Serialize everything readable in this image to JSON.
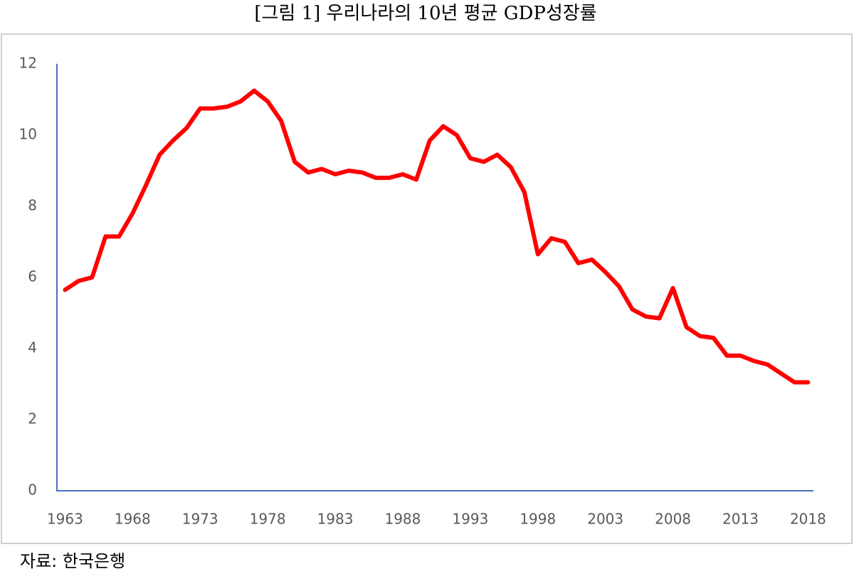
{
  "chart_data": {
    "type": "line",
    "title": "[그림 1] 우리나라의 10년 평균 GDP성장률",
    "source": "자료: 한국은행",
    "x": [
      1963,
      1964,
      1965,
      1966,
      1967,
      1968,
      1969,
      1970,
      1971,
      1972,
      1973,
      1974,
      1975,
      1976,
      1977,
      1978,
      1979,
      1980,
      1981,
      1982,
      1983,
      1984,
      1985,
      1986,
      1987,
      1988,
      1989,
      1990,
      1991,
      1992,
      1993,
      1994,
      1995,
      1996,
      1997,
      1998,
      1999,
      2000,
      2001,
      2002,
      2003,
      2004,
      2005,
      2006,
      2007,
      2008,
      2009,
      2010,
      2011,
      2012,
      2013,
      2014,
      2015,
      2016,
      2017,
      2018
    ],
    "series": [
      {
        "color": "#ff0000",
        "values": [
          5.65,
          5.9,
          6.0,
          7.15,
          7.15,
          7.8,
          8.6,
          9.45,
          9.85,
          10.2,
          10.75,
          10.75,
          10.8,
          10.95,
          11.25,
          10.95,
          10.4,
          9.25,
          8.95,
          9.05,
          8.9,
          9.0,
          8.95,
          8.8,
          8.8,
          8.9,
          8.75,
          9.85,
          10.25,
          10.0,
          9.35,
          9.25,
          9.45,
          9.1,
          8.4,
          6.65,
          7.1,
          7.0,
          6.4,
          6.5,
          6.15,
          5.75,
          5.1,
          4.9,
          4.85,
          5.7,
          4.6,
          4.35,
          4.3,
          3.8,
          3.8,
          3.65,
          3.55,
          3.3,
          3.05,
          3.05
        ]
      }
    ],
    "xlim": [
      1962.4,
      2018.4
    ],
    "xticks": [
      1963,
      1968,
      1973,
      1978,
      1983,
      1988,
      1993,
      1998,
      2003,
      2008,
      2013,
      2018
    ],
    "ylim": [
      0,
      12
    ],
    "yticks": [
      0,
      2,
      4,
      6,
      8,
      10,
      12
    ],
    "grid": false
  }
}
